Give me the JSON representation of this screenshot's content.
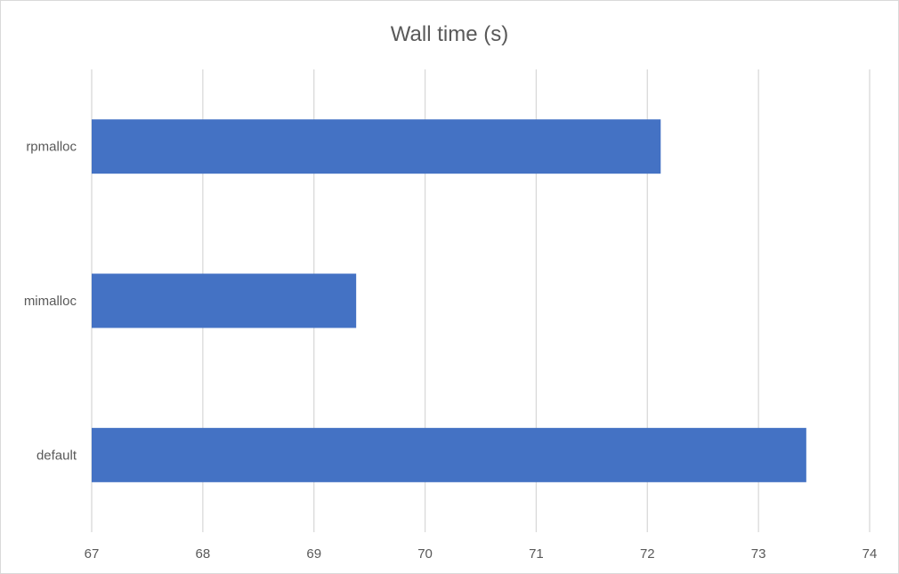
{
  "chart_data": {
    "type": "bar",
    "orientation": "horizontal",
    "title": "Wall time (s)",
    "xlabel": "",
    "ylabel": "",
    "categories": [
      "rpmalloc",
      "mimalloc",
      "default"
    ],
    "values": [
      72.12,
      69.38,
      73.43
    ],
    "xlim": [
      67,
      74
    ],
    "xticks": [
      "67",
      "68",
      "69",
      "70",
      "71",
      "72",
      "73",
      "74"
    ],
    "grid": true,
    "legend": "none",
    "bar_color": "#4472c4"
  }
}
